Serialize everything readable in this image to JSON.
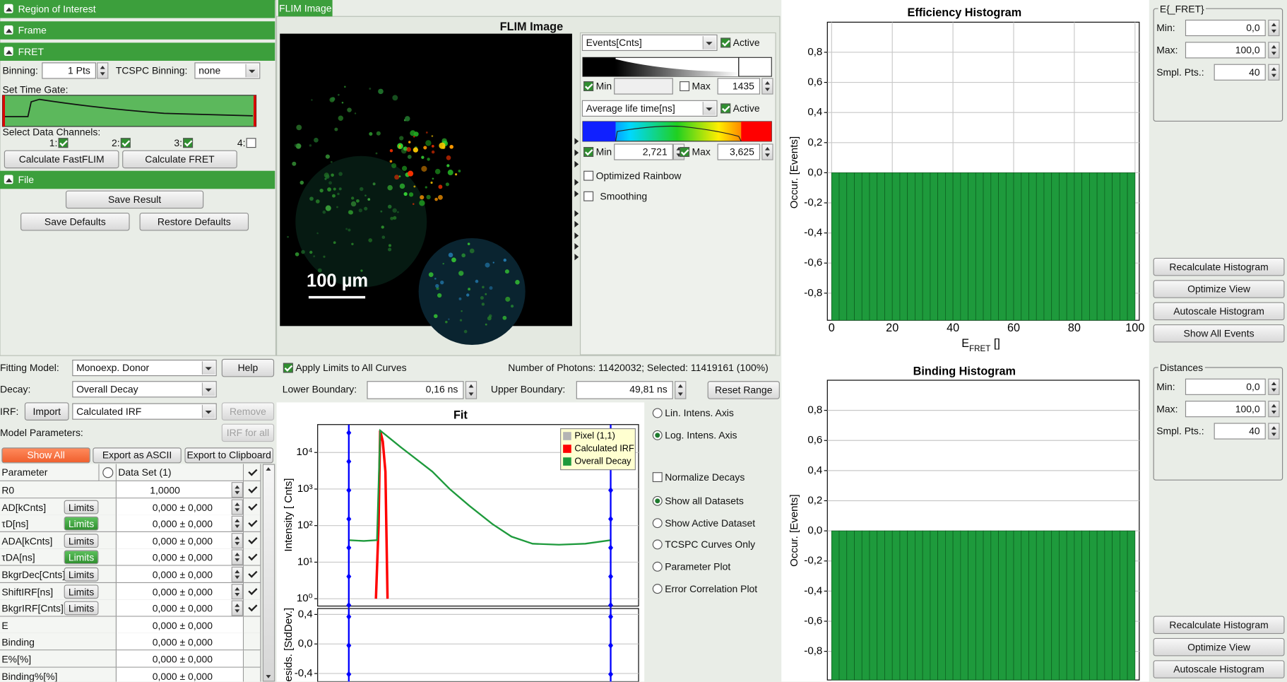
{
  "left_panel": {
    "sections": [
      "Region of Interest",
      "Frame",
      "FRET",
      "File"
    ],
    "binning_label": "Binning:",
    "binning_value": "1 Pts",
    "tcspc_label": "TCSPC Binning:",
    "tcspc_value": "none",
    "time_gate_label": "Set Time Gate:",
    "channels_label": "Select Data Channels:",
    "channels": [
      "1:",
      "2:",
      "3:",
      "4:"
    ],
    "buttons": [
      "Calculate FastFLIM",
      "Calculate FRET",
      "Save Result",
      "Save Defaults",
      "Restore Defaults"
    ]
  },
  "flim_panel": {
    "tab": "FLIM Image",
    "title": "FLIM Image",
    "scale_bar": "100 µm",
    "intensity_select": "Events[Cnts]",
    "intensity_active": "Active",
    "intensity_min_label": "Min",
    "intensity_max_label": "Max",
    "intensity_max": "1435",
    "lifetime_select": "Average life time[ns]",
    "lifetime_active": "Active",
    "lifetime_min_label": "Min",
    "lifetime_min": "2,721",
    "lifetime_max_label": "Max",
    "lifetime_max": "3,625",
    "optimized_rainbow": "Optimized Rainbow",
    "smoothing": "Smoothing"
  },
  "fitting": {
    "model_label": "Fitting Model:",
    "model": "Monoexp. Donor",
    "help": "Help",
    "decay_label": "Decay:",
    "decay": "Overall Decay",
    "irf_label": "IRF:",
    "import": "Import",
    "irf": "Calculated IRF",
    "remove": "Remove",
    "model_params_label": "Model Parameters:",
    "irf_for_all": "IRF for all",
    "show_all": "Show All",
    "export_ascii": "Export as ASCII",
    "export_clipboard": "Export to Clipboard"
  },
  "parameters": {
    "headers": [
      "Parameter",
      "Data Set (1)"
    ],
    "limits_label": "Limits",
    "rows": [
      {
        "name": "R0",
        "value": "1,0000"
      },
      {
        "name": "AD[kCnts]",
        "value": "0,000 ± 0,000"
      },
      {
        "name": "τD[ns]",
        "value": "0,000 ± 0,000"
      },
      {
        "name": "ADA[kCnts]",
        "value": "0,000 ± 0,000"
      },
      {
        "name": "τDA[ns]",
        "value": "0,000 ± 0,000"
      },
      {
        "name": "BkgrDec[Cnts]",
        "value": "0,000 ± 0,000"
      },
      {
        "name": "ShiftIRF[ns]",
        "value": "0,000 ± 0,000"
      },
      {
        "name": "BkgrIRF[Cnts]",
        "value": "0,000 ± 0,000"
      },
      {
        "name": "E",
        "value": "0,000 ± 0,000"
      },
      {
        "name": "Binding",
        "value": "0,000 ± 0,000"
      },
      {
        "name": "E%[%]",
        "value": "0,000 ± 0,000"
      },
      {
        "name": "Binding%[%]",
        "value": "0,000 ± 0,000"
      }
    ]
  },
  "decay_controls": {
    "apply_limits": "Apply Limits to All Curves",
    "photons": "Number of Photons: 11420032; Selected: 11419161 (100%)",
    "lower_label": "Lower Boundary:",
    "lower": "0,16 ns",
    "upper_label": "Upper Boundary:",
    "upper": "49,81 ns",
    "reset": "Reset Range",
    "options": [
      "Lin. Intens. Axis",
      "Log. Intens. Axis",
      "Normalize Decays",
      "Show all Datasets",
      "Show Active Dataset",
      "TCSPC Curves Only",
      "Parameter Plot",
      "Error Correlation Plot"
    ]
  },
  "efret_panel": {
    "title": "E{_FRET}",
    "min_label": "Min:",
    "min": "0,0",
    "max_label": "Max:",
    "max": "100,0",
    "points_label": "Smpl. Pts.:",
    "points": "40",
    "buttons": [
      "Recalculate Histogram",
      "Optimize View",
      "Autoscale Histogram",
      "Show All Events"
    ]
  },
  "distances_panel": {
    "title": "Distances",
    "min_label": "Min:",
    "min": "0,0",
    "max_label": "Max:",
    "max": "100,0",
    "points_label": "Smpl. Pts.:",
    "points": "40",
    "buttons": [
      "Recalculate Histogram",
      "Optimize View",
      "Autoscale Histogram"
    ]
  },
  "chart_data": [
    {
      "type": "histogram",
      "title": "Efficiency Histogram",
      "y_label": "Occur. [Events]",
      "x_label": [
        "E",
        "FRET",
        " []"
      ],
      "bins": [
        0,
        2.5,
        5,
        7.5,
        10,
        12.5,
        15,
        17.5,
        20,
        22.5,
        25,
        27.5,
        30,
        32.5,
        35,
        37.5,
        40,
        42.5,
        45,
        47.5,
        50,
        52.5,
        55,
        57.5,
        60,
        62.5,
        65,
        67.5,
        70,
        72.5,
        75,
        77.5,
        80,
        82.5,
        85,
        87.5,
        90,
        92.5,
        95,
        97.5,
        100
      ],
      "values": [
        -0.98,
        -0.98,
        -0.98,
        -0.98,
        -0.98,
        -0.98,
        -0.98,
        -0.98,
        -0.98,
        -0.98,
        -0.98,
        -0.98,
        -0.98,
        -0.98,
        -0.98,
        -0.98,
        -0.98,
        -0.98,
        -0.98,
        -0.98,
        -0.98,
        -0.98,
        -0.98,
        -0.98,
        -0.98,
        -0.98,
        -0.98,
        -0.98,
        -0.98,
        -0.98,
        -0.98,
        -0.98,
        -0.98,
        -0.98,
        -0.98,
        -0.98,
        -0.98,
        -0.98,
        -0.98,
        -0.98
      ],
      "color": "#1e9a3c",
      "xlim": [
        -1.4,
        101.4
      ],
      "ylim": [
        -0.98,
        1.0
      ],
      "xticks": [
        0,
        20,
        40,
        60,
        80,
        100
      ],
      "yticks": [
        {
          "value": -0.8,
          "label": "-0,8"
        },
        {
          "value": -0.6,
          "label": "-0,6"
        },
        {
          "value": -0.4,
          "label": "-0,4"
        },
        {
          "value": -0.2,
          "label": "-0,2"
        },
        {
          "value": 0,
          "label": "0,0"
        },
        {
          "value": 0.2,
          "label": "0,2"
        },
        {
          "value": 0.4,
          "label": "0,4"
        },
        {
          "value": 0.6,
          "label": "0,6"
        },
        {
          "value": 0.8,
          "label": "0,8"
        }
      ],
      "grid": true
    },
    {
      "type": "histogram",
      "title": "Binding Histogram",
      "y_label": "Occur. [Events]",
      "bins": [
        0,
        2.5,
        5,
        7.5,
        10,
        12.5,
        15,
        17.5,
        20,
        22.5,
        25,
        27.5,
        30,
        32.5,
        35,
        37.5,
        40,
        42.5,
        45,
        47.5,
        50,
        52.5,
        55,
        57.5,
        60,
        62.5,
        65,
        67.5,
        70,
        72.5,
        75,
        77.5,
        80,
        82.5,
        85,
        87.5,
        90,
        92.5,
        95,
        97.5,
        100
      ],
      "values": [
        -0.99,
        -0.99,
        -0.99,
        -0.99,
        -0.99,
        -0.99,
        -0.99,
        -0.99,
        -0.99,
        -0.99,
        -0.99,
        -0.99,
        -0.99,
        -0.99,
        -0.99,
        -0.99,
        -0.99,
        -0.99,
        -0.99,
        -0.99,
        -0.99,
        -0.99,
        -0.99,
        -0.99,
        -0.99,
        -0.99,
        -0.99,
        -0.99,
        -0.99,
        -0.99,
        -0.99,
        -0.99,
        -0.99,
        -0.99,
        -0.99,
        -0.99,
        -0.99,
        -0.99,
        -0.99,
        -0.99
      ],
      "color": "#1e9a3c",
      "xlim": [
        -1.4,
        101.4
      ],
      "ylim": [
        -0.99,
        1.0
      ],
      "yticks": [
        {
          "value": -0.8,
          "label": "-0,8"
        },
        {
          "value": -0.6,
          "label": "-0,6"
        },
        {
          "value": -0.4,
          "label": "-0,4"
        },
        {
          "value": -0.2,
          "label": "-0,2"
        },
        {
          "value": 0,
          "label": "0,0"
        },
        {
          "value": 0.2,
          "label": "0,2"
        },
        {
          "value": 0.4,
          "label": "0,4"
        },
        {
          "value": 0.6,
          "label": "0,6"
        },
        {
          "value": 0.8,
          "label": "0,8"
        }
      ],
      "grid": true
    },
    {
      "type": "line",
      "title": "Fit",
      "y_label": "Intensity [ Cnts]",
      "y_scale": "log",
      "xlim": [
        -5.75,
        55.1
      ],
      "ylim": [
        0.63,
        58000
      ],
      "yticks": [
        {
          "value": 1,
          "label": "10⁰"
        },
        {
          "value": 10,
          "label": "10¹"
        },
        {
          "value": 100,
          "label": "10²"
        },
        {
          "value": 1000,
          "label": "10³"
        },
        {
          "value": 10000,
          "label": "10⁴"
        }
      ],
      "grid": true,
      "legend": "top-right",
      "boundaries": [
        0.16,
        49.81
      ],
      "boundary_color": "#0000ff",
      "series": [
        {
          "name": "Pixel (1,1)",
          "color": "#b4b4b4",
          "x": [],
          "values": []
        },
        {
          "name": "Calculated IRF",
          "color": "#ff0000",
          "x": [
            5.3,
            5.8,
            6.1,
            6.6,
            7.1,
            7.5
          ],
          "values": [
            1,
            100,
            40000,
            20000,
            3000,
            1
          ]
        },
        {
          "name": "Overall Decay",
          "color": "#1e9a3c",
          "x": [
            0.16,
            3,
            5.5,
            6.1,
            8,
            10,
            13,
            16,
            19.3,
            23,
            27.4,
            31,
            35,
            40,
            45,
            49.81
          ],
          "values": [
            40,
            38,
            40,
            40000,
            24000,
            14000,
            6500,
            3000,
            1000,
            350,
            110,
            50,
            32,
            30,
            32,
            40
          ]
        }
      ]
    },
    {
      "type": "line",
      "y_label": "esids. [StdDev.]",
      "xlim": [
        -5.75,
        55.1
      ],
      "ylim": [
        -0.51,
        0.48
      ],
      "yticks": [
        {
          "value": -0.4,
          "label": "-0,4"
        },
        {
          "value": 0,
          "label": "0,0"
        },
        {
          "value": 0.4,
          "label": "0,4"
        }
      ],
      "grid": true,
      "boundaries": [
        0.16,
        49.81
      ],
      "boundary_color": "#0000ff",
      "series": []
    }
  ]
}
